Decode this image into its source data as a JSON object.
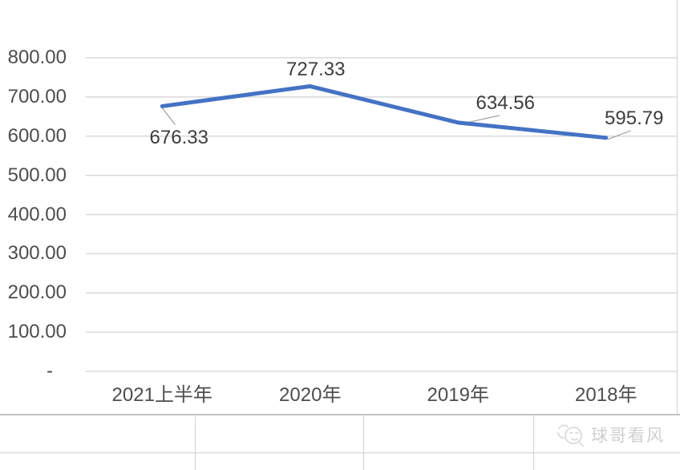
{
  "chart_data": {
    "type": "line",
    "categories": [
      "2021上半年",
      "2020年",
      "2019年",
      "2018年"
    ],
    "values": [
      676.33,
      727.33,
      634.56,
      595.79
    ],
    "data_labels": [
      "676.33",
      "727.33",
      "634.56",
      "595.79"
    ],
    "y_ticks": [
      "800.00",
      "700.00",
      "600.00",
      "500.00",
      "400.00",
      "300.00",
      "200.00",
      "100.00",
      "-"
    ],
    "y_tick_values": [
      800,
      700,
      600,
      500,
      400,
      300,
      200,
      100,
      0
    ],
    "ylim": [
      0,
      800
    ],
    "title": "",
    "xlabel": "",
    "ylabel": "",
    "grid": true,
    "legend": "none",
    "series_color": "#4472C4",
    "gridline_color": "#D9D9D9",
    "leader_line_color": "#A6A6A6",
    "axis_label_color": "#4D4D4D",
    "data_label_color": "#3D3D3D"
  },
  "watermark": {
    "text": "球哥看风"
  }
}
